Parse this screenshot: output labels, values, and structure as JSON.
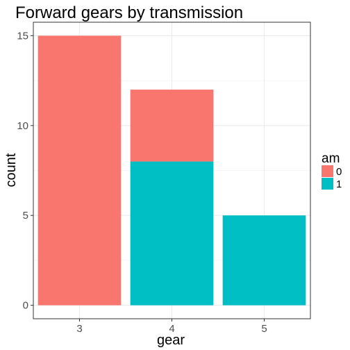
{
  "chart_data": {
    "type": "bar",
    "stacked": true,
    "title": "Forward gears by transmission",
    "xlabel": "gear",
    "ylabel": "count",
    "categories": [
      "3",
      "4",
      "5"
    ],
    "series": [
      {
        "name": "0",
        "color": "#F8766D",
        "values": [
          15,
          4,
          0
        ]
      },
      {
        "name": "1",
        "color": "#00BFC4",
        "values": [
          0,
          8,
          5
        ]
      }
    ],
    "y_ticks": [
      0,
      5,
      10,
      15
    ],
    "ylim": [
      0,
      15.75
    ],
    "grid": true,
    "legend": {
      "title": "am",
      "position": "right"
    }
  }
}
